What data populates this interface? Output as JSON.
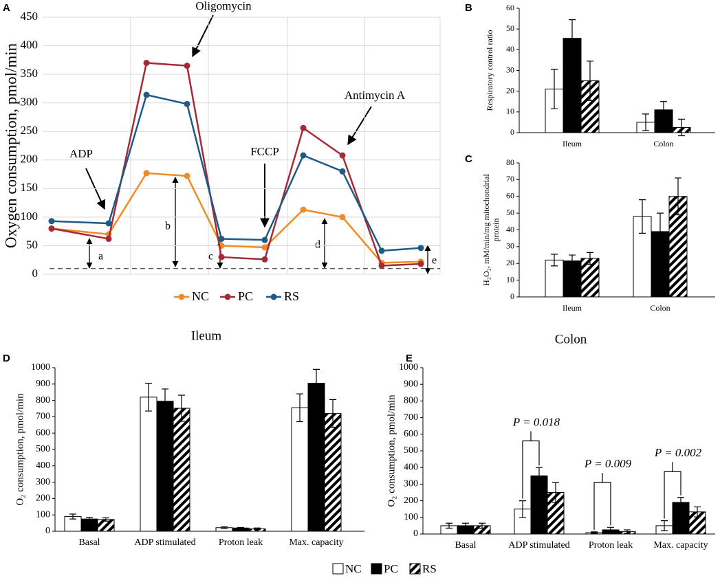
{
  "chart_data": [
    {
      "type": "line",
      "panel": "A",
      "ylabel": "Oxygen consumption, pmol/min",
      "categories": [
        null,
        null,
        null,
        null,
        null,
        null,
        null,
        null,
        null,
        null
      ],
      "series": [
        {
          "name": "NC",
          "color": "#f08a24",
          "values": [
            80,
            70,
            177,
            172,
            50,
            47,
            113,
            100,
            20,
            22
          ]
        },
        {
          "name": "PC",
          "color": "#a52a35",
          "values": [
            80,
            62,
            370,
            365,
            30,
            26,
            256,
            208,
            15,
            18
          ]
        },
        {
          "name": "RS",
          "color": "#1f5a87",
          "values": [
            93,
            89,
            314,
            298,
            62,
            60,
            208,
            180,
            41,
            46
          ]
        }
      ],
      "ylim": [
        0,
        450
      ],
      "yticks": [
        0,
        50,
        100,
        150,
        200,
        250,
        300,
        350,
        400,
        450
      ],
      "grid": true,
      "reference_line": 10,
      "annotations": [
        "ADP",
        "Oligomycin",
        "FCCP",
        "Antimycin A"
      ],
      "segment_labels": [
        "a",
        "b",
        "c",
        "d",
        "e"
      ]
    },
    {
      "type": "bar",
      "panel": "B",
      "ylabel": [
        "Respiratory control ratio"
      ],
      "categories": [
        "Ileum",
        "Colon"
      ],
      "series": [
        {
          "name": "NC",
          "color": "#ffffff",
          "values": [
            21,
            5
          ],
          "errors": [
            9.5,
            4
          ]
        },
        {
          "name": "PC",
          "color": "#000000",
          "values": [
            45.5,
            11
          ],
          "errors": [
            9,
            4
          ]
        },
        {
          "name": "RS",
          "color": "#ffffff",
          "hatch": true,
          "values": [
            25,
            2.5
          ],
          "errors": [
            9.5,
            4
          ]
        }
      ],
      "ylim": [
        0,
        60
      ],
      "yticks": [
        0,
        10,
        20,
        30,
        40,
        50,
        60
      ]
    },
    {
      "type": "bar",
      "panel": "C",
      "ylabel": [
        "H₂O₂, mM/min/mg mitochondrial",
        "protein"
      ],
      "categories": [
        "Ileum",
        "Colon"
      ],
      "series": [
        {
          "name": "NC",
          "color": "#ffffff",
          "values": [
            22,
            48
          ],
          "errors": [
            3.5,
            10
          ]
        },
        {
          "name": "PC",
          "color": "#000000",
          "values": [
            21.5,
            39
          ],
          "errors": [
            3.5,
            11
          ]
        },
        {
          "name": "RS",
          "color": "#ffffff",
          "hatch": true,
          "values": [
            23,
            60
          ],
          "errors": [
            3.5,
            11
          ]
        }
      ],
      "ylim": [
        0,
        80
      ],
      "yticks": [
        0,
        10,
        20,
        30,
        40,
        50,
        60,
        70,
        80
      ]
    },
    {
      "type": "bar",
      "panel": "D",
      "title": "Ileum",
      "ylabel": [
        "O₂ consumption, pmol/min"
      ],
      "categories": [
        "Basal",
        "ADP stimulated",
        "Proton leak",
        "Max. capacity"
      ],
      "series": [
        {
          "name": "NC",
          "color": "#ffffff",
          "values": [
            90,
            820,
            22,
            755
          ],
          "errors": [
            15,
            85,
            5,
            85
          ]
        },
        {
          "name": "PC",
          "color": "#000000",
          "values": [
            75,
            795,
            20,
            905
          ],
          "errors": [
            10,
            75,
            3,
            85
          ]
        },
        {
          "name": "RS",
          "color": "#ffffff",
          "hatch": true,
          "values": [
            72,
            752,
            15,
            720
          ],
          "errors": [
            10,
            80,
            5,
            85
          ]
        }
      ],
      "ylim": [
        0,
        1000
      ],
      "yticks": [
        0,
        100,
        200,
        300,
        400,
        500,
        600,
        700,
        800,
        900,
        1000
      ]
    },
    {
      "type": "bar",
      "panel": "E",
      "title": "Colon",
      "ylabel": [
        "O₂ consumption, pmol/min"
      ],
      "categories": [
        "Basal",
        "ADP stimulated",
        "Proton leak",
        "Max. capacity"
      ],
      "series": [
        {
          "name": "NC",
          "color": "#ffffff",
          "values": [
            50,
            150,
            8,
            50
          ],
          "errors": [
            15,
            50,
            5,
            30
          ]
        },
        {
          "name": "PC",
          "color": "#000000",
          "values": [
            50,
            350,
            25,
            190
          ],
          "errors": [
            15,
            50,
            15,
            30
          ]
        },
        {
          "name": "RS",
          "color": "#ffffff",
          "hatch": true,
          "values": [
            50,
            250,
            15,
            133
          ],
          "errors": [
            15,
            60,
            10,
            30
          ]
        }
      ],
      "ylim": [
        0,
        1000
      ],
      "yticks": [
        0,
        100,
        200,
        300,
        400,
        500,
        600,
        700,
        800,
        900,
        1000
      ],
      "annotations": [
        {
          "text": "P = 0.018",
          "category": 1,
          "y": 560
        },
        {
          "text": "P = 0.009",
          "category": 2,
          "y": 310
        },
        {
          "text": "P = 0.002",
          "category": 3,
          "y": 375
        }
      ]
    }
  ]
}
